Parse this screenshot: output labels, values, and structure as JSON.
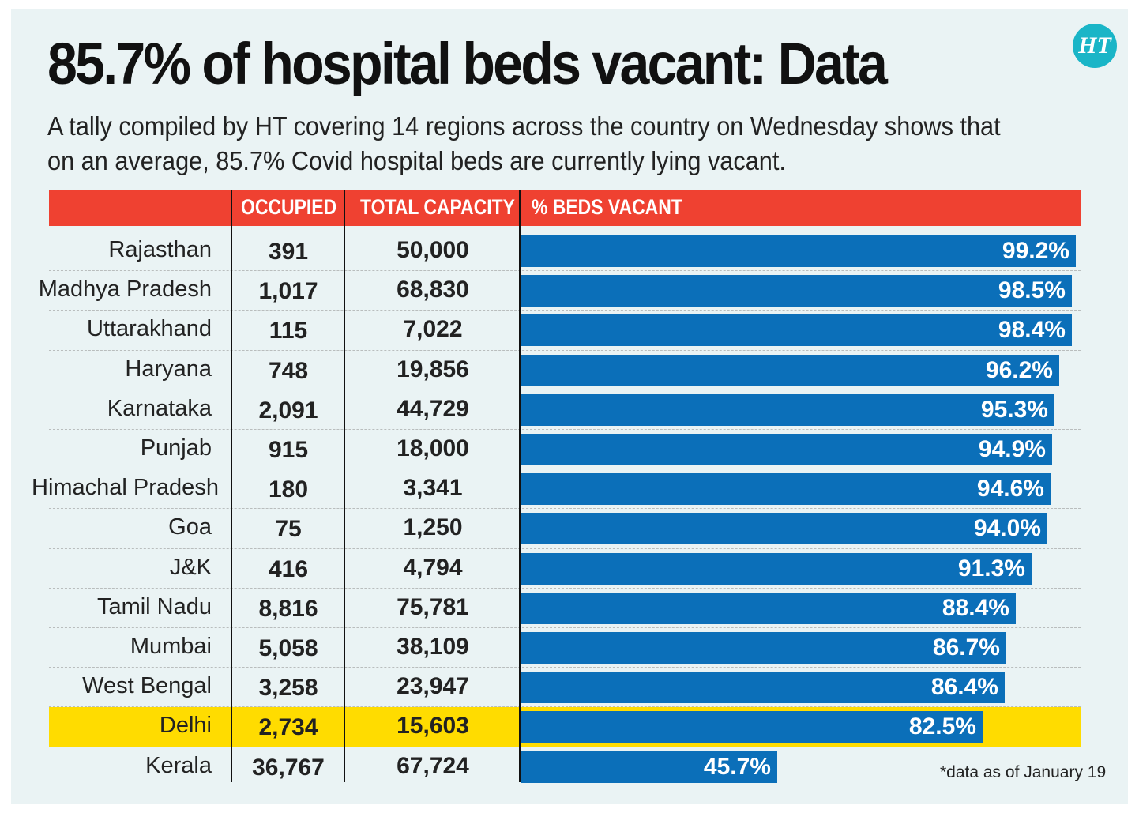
{
  "title": "85.7% of hospital beds vacant: Data",
  "subtitle": "A tally compiled by HT covering 14 regions across the country on Wednesday shows that on an average, 85.7% Covid hospital beds are currently lying vacant.",
  "logo": "HT",
  "footnote": "*data as of January 19",
  "colors": {
    "header": "#ef4131",
    "bar": "#0b6fb9",
    "highlight": "#ffdc00",
    "background": "#eaf3f4"
  },
  "chart_data": {
    "type": "table",
    "title": "85.7% of hospital beds vacant: Data",
    "columns": [
      "OCCUPIED",
      "TOTAL CAPACITY",
      "% BEDS VACANT"
    ],
    "highlighted_row": "Delhi",
    "vacant_axis": [
      0,
      100
    ],
    "rows": [
      {
        "state": "Rajasthan",
        "occupied": "391",
        "capacity": "50,000",
        "vacant": 99.2,
        "vacant_label": "99.2%"
      },
      {
        "state": "Madhya Pradesh",
        "occupied": "1,017",
        "capacity": "68,830",
        "vacant": 98.5,
        "vacant_label": "98.5%"
      },
      {
        "state": "Uttarakhand",
        "occupied": "115",
        "capacity": "7,022",
        "vacant": 98.4,
        "vacant_label": "98.4%"
      },
      {
        "state": "Haryana",
        "occupied": "748",
        "capacity": "19,856",
        "vacant": 96.2,
        "vacant_label": "96.2%"
      },
      {
        "state": "Karnataka",
        "occupied": "2,091",
        "capacity": "44,729",
        "vacant": 95.3,
        "vacant_label": "95.3%"
      },
      {
        "state": "Punjab",
        "occupied": "915",
        "capacity": "18,000",
        "vacant": 94.9,
        "vacant_label": "94.9%"
      },
      {
        "state": "Himachal Pradesh",
        "occupied": "180",
        "capacity": "3,341",
        "vacant": 94.6,
        "vacant_label": "94.6%"
      },
      {
        "state": "Goa",
        "occupied": "75",
        "capacity": "1,250",
        "vacant": 94.0,
        "vacant_label": "94.0%"
      },
      {
        "state": "J&K",
        "occupied": "416",
        "capacity": "4,794",
        "vacant": 91.3,
        "vacant_label": "91.3%"
      },
      {
        "state": "Tamil Nadu",
        "occupied": "8,816",
        "capacity": "75,781",
        "vacant": 88.4,
        "vacant_label": "88.4%"
      },
      {
        "state": "Mumbai",
        "occupied": "5,058",
        "capacity": "38,109",
        "vacant": 86.7,
        "vacant_label": "86.7%"
      },
      {
        "state": "West Bengal",
        "occupied": "3,258",
        "capacity": "23,947",
        "vacant": 86.4,
        "vacant_label": "86.4%"
      },
      {
        "state": "Delhi",
        "occupied": "2,734",
        "capacity": "15,603",
        "vacant": 82.5,
        "vacant_label": "82.5%"
      },
      {
        "state": "Kerala",
        "occupied": "36,767",
        "capacity": "67,724",
        "vacant": 45.7,
        "vacant_label": "45.7%"
      }
    ]
  }
}
